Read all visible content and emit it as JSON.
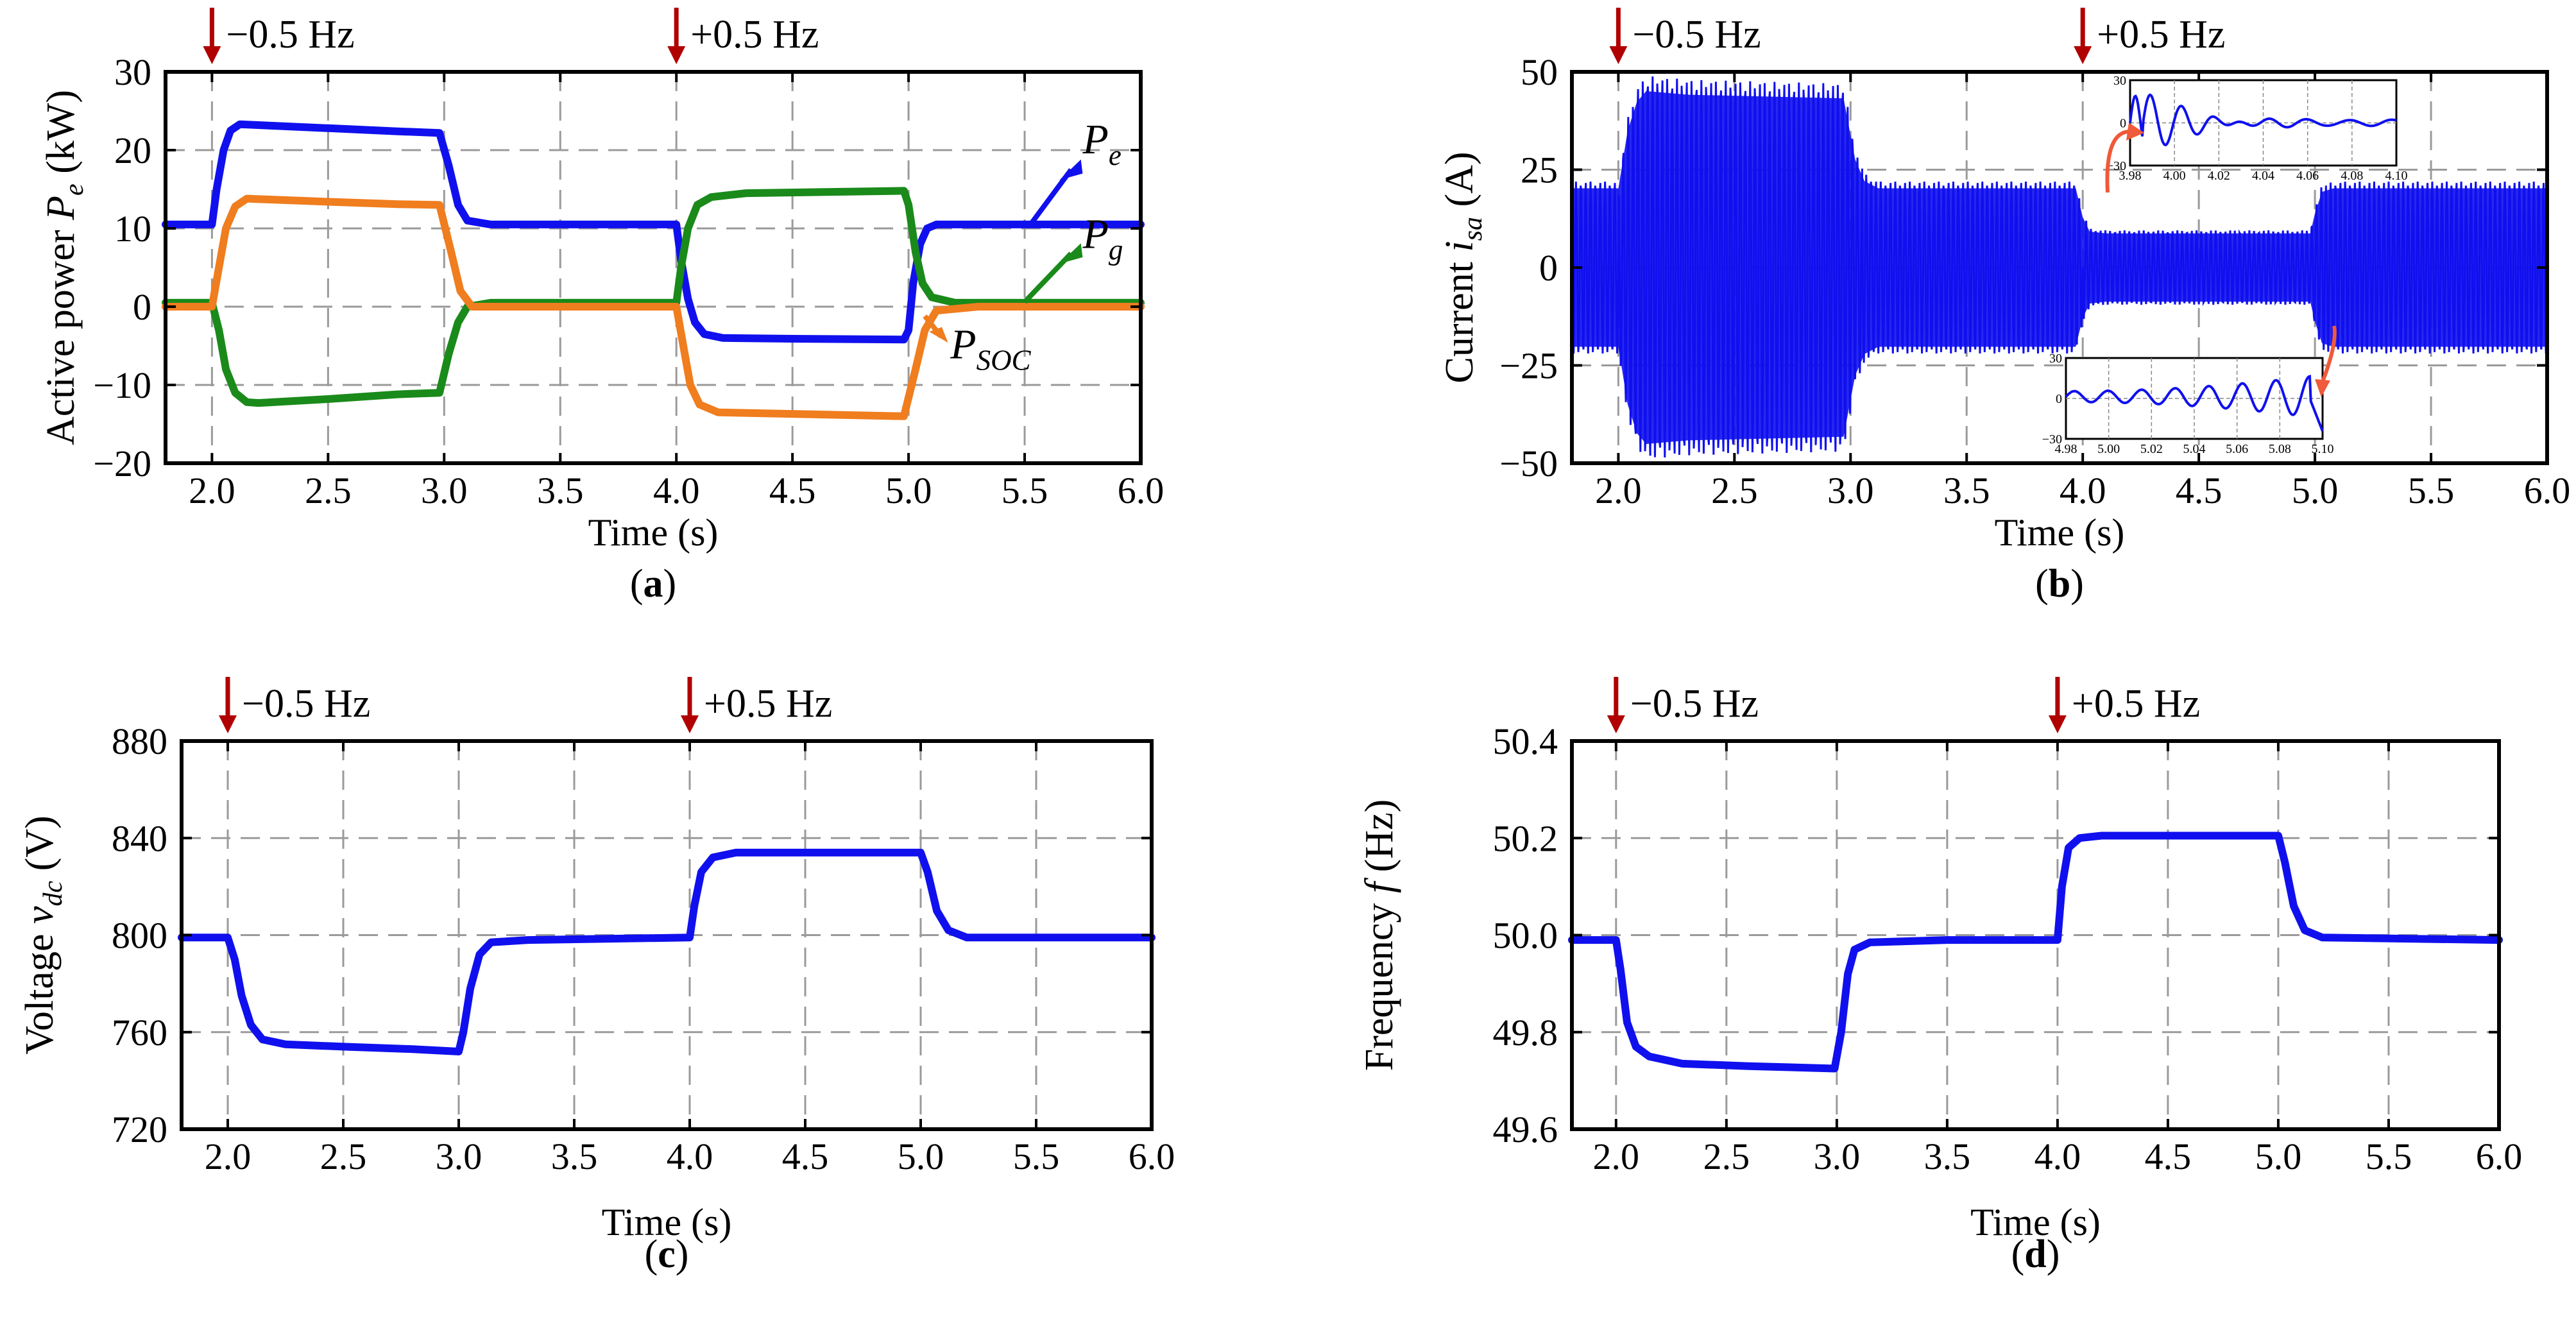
{
  "figure": {
    "colors": {
      "pe": "#1010ee",
      "pg": "#1a8a1a",
      "psoc": "#f07d1e",
      "current": "#1010ee",
      "trace": "#1010ee",
      "marker": "#b00000",
      "zoom_arrow": "#ef5a3a"
    }
  },
  "chart_data": [
    {
      "id": "a",
      "type": "line",
      "panel_label": "(a)",
      "xlabel": "Time (s)",
      "ylabel": "Active power P_e (kW)",
      "ylabel_prefix": "Active power ",
      "ylabel_sym": "P",
      "ylabel_sub": "e",
      "ylabel_suffix": " (kW)",
      "xlim": [
        1.8,
        6.0
      ],
      "ylim": [
        -20,
        30
      ],
      "xticks": [
        2.0,
        2.5,
        3.0,
        3.5,
        4.0,
        4.5,
        5.0,
        5.5,
        6.0
      ],
      "xtick_labels": [
        "2.0",
        "2.5",
        "3.0",
        "3.5",
        "4.0",
        "4.5",
        "5.0",
        "5.5",
        "6.0"
      ],
      "yticks": [
        -20,
        -10,
        0,
        10,
        20,
        30
      ],
      "ytick_labels": [
        "−20",
        "−10",
        "0",
        "10",
        "20",
        "30"
      ],
      "events": [
        {
          "x": 2.0,
          "label": "−0.5 Hz"
        },
        {
          "x": 4.0,
          "label": "+0.5 Hz"
        }
      ],
      "series": [
        {
          "name": "P_e",
          "sym": "P",
          "sub": "e",
          "color_key": "pe",
          "points": [
            [
              1.8,
              10.5
            ],
            [
              2.0,
              10.5
            ],
            [
              2.02,
              15
            ],
            [
              2.05,
              20
            ],
            [
              2.08,
              22.5
            ],
            [
              2.12,
              23.3
            ],
            [
              2.2,
              23.2
            ],
            [
              2.5,
              22.8
            ],
            [
              2.8,
              22.4
            ],
            [
              2.98,
              22.2
            ],
            [
              3.02,
              18
            ],
            [
              3.06,
              13
            ],
            [
              3.1,
              11
            ],
            [
              3.2,
              10.5
            ],
            [
              4.0,
              10.5
            ],
            [
              4.02,
              6
            ],
            [
              4.05,
              1
            ],
            [
              4.08,
              -2
            ],
            [
              4.12,
              -3.5
            ],
            [
              4.2,
              -4
            ],
            [
              4.5,
              -4.1
            ],
            [
              4.98,
              -4.2
            ],
            [
              5.0,
              -3
            ],
            [
              5.02,
              3
            ],
            [
              5.05,
              8
            ],
            [
              5.08,
              10
            ],
            [
              5.12,
              10.5
            ],
            [
              6.0,
              10.5
            ]
          ]
        },
        {
          "name": "P_g",
          "sym": "P",
          "sub": "g",
          "color_key": "pg",
          "points": [
            [
              1.8,
              0.5
            ],
            [
              2.0,
              0.5
            ],
            [
              2.03,
              -3
            ],
            [
              2.06,
              -8
            ],
            [
              2.1,
              -11
            ],
            [
              2.15,
              -12.2
            ],
            [
              2.2,
              -12.3
            ],
            [
              2.5,
              -11.8
            ],
            [
              2.8,
              -11.2
            ],
            [
              2.98,
              -11
            ],
            [
              3.02,
              -6
            ],
            [
              3.06,
              -2
            ],
            [
              3.1,
              0
            ],
            [
              3.2,
              0.5
            ],
            [
              4.0,
              0.5
            ],
            [
              4.02,
              5
            ],
            [
              4.05,
              10
            ],
            [
              4.09,
              13
            ],
            [
              4.15,
              14
            ],
            [
              4.3,
              14.5
            ],
            [
              4.98,
              14.8
            ],
            [
              5.0,
              13
            ],
            [
              5.03,
              7
            ],
            [
              5.06,
              3
            ],
            [
              5.1,
              1.2
            ],
            [
              5.2,
              0.5
            ],
            [
              6.0,
              0.5
            ]
          ]
        },
        {
          "name": "P_SOC",
          "sym": "P",
          "sub": "SOC",
          "color_key": "psoc",
          "points": [
            [
              1.8,
              0
            ],
            [
              2.0,
              0
            ],
            [
              2.03,
              5
            ],
            [
              2.06,
              10
            ],
            [
              2.1,
              12.8
            ],
            [
              2.15,
              13.8
            ],
            [
              2.5,
              13.4
            ],
            [
              2.8,
              13.1
            ],
            [
              2.98,
              13
            ],
            [
              3.03,
              7
            ],
            [
              3.07,
              2
            ],
            [
              3.12,
              0
            ],
            [
              4.0,
              0
            ],
            [
              4.03,
              -5
            ],
            [
              4.06,
              -10
            ],
            [
              4.1,
              -12.5
            ],
            [
              4.18,
              -13.5
            ],
            [
              4.98,
              -14
            ],
            [
              5.03,
              -8
            ],
            [
              5.07,
              -3
            ],
            [
              5.12,
              -0.5
            ],
            [
              5.3,
              0
            ],
            [
              6.0,
              0
            ]
          ]
        }
      ]
    },
    {
      "id": "b",
      "type": "line",
      "panel_label": "(b)",
      "xlabel": "Time (s)",
      "ylabel": "Current i_sa (A)",
      "ylabel_prefix": "Current ",
      "ylabel_sym": "i",
      "ylabel_sub": "sa",
      "ylabel_suffix": " (A)",
      "xlim": [
        1.8,
        6.0
      ],
      "ylim": [
        -50,
        50
      ],
      "xticks": [
        2.0,
        2.5,
        3.0,
        3.5,
        4.0,
        4.5,
        5.0,
        5.5,
        6.0
      ],
      "xtick_labels": [
        "2.0",
        "2.5",
        "3.0",
        "3.5",
        "4.0",
        "4.5",
        "5.0",
        "5.5",
        "6.0"
      ],
      "yticks": [
        -50,
        -25,
        0,
        25,
        50
      ],
      "ytick_labels": [
        "−50",
        "−25",
        "0",
        "25",
        "50"
      ],
      "events": [
        {
          "x": 2.0,
          "label": "−0.5 Hz"
        },
        {
          "x": 4.0,
          "label": "+0.5 Hz"
        }
      ],
      "envelope": [
        [
          1.8,
          22
        ],
        [
          2.0,
          22
        ],
        [
          2.04,
          38
        ],
        [
          2.08,
          46
        ],
        [
          2.12,
          49
        ],
        [
          2.3,
          48
        ],
        [
          2.97,
          47
        ],
        [
          3.02,
          30
        ],
        [
          3.06,
          24
        ],
        [
          3.12,
          22
        ],
        [
          3.97,
          22
        ],
        [
          4.0,
          14
        ],
        [
          4.03,
          10
        ],
        [
          4.1,
          9.5
        ],
        [
          4.98,
          9.5
        ],
        [
          5.0,
          15
        ],
        [
          5.03,
          21
        ],
        [
          5.08,
          22
        ],
        [
          6.0,
          22
        ]
      ],
      "insets": [
        {
          "xlim": [
            3.98,
            4.1
          ],
          "ylim": [
            -30,
            30
          ],
          "xticks": [
            "3.98",
            "4.00",
            "4.02",
            "4.04",
            "4.06",
            "4.08",
            "4.10"
          ],
          "yticks": [
            "30",
            "0",
            "−30"
          ]
        },
        {
          "xlim": [
            4.98,
            5.1
          ],
          "ylim": [
            -30,
            30
          ],
          "xticks": [
            "4.98",
            "5.00",
            "5.02",
            "5.04",
            "5.06",
            "5.08",
            "5.10"
          ],
          "yticks": [
            "30",
            "0",
            "−30"
          ]
        }
      ]
    },
    {
      "id": "c",
      "type": "line",
      "panel_label": "(c)",
      "xlabel": "Time (s)",
      "ylabel": "Voltage v_dc (V)",
      "ylabel_prefix": "Voltage ",
      "ylabel_sym": "v",
      "ylabel_sub": "dc",
      "ylabel_suffix": " (V)",
      "xlim": [
        1.8,
        6.0
      ],
      "ylim": [
        720,
        880
      ],
      "xticks": [
        2.0,
        2.5,
        3.0,
        3.5,
        4.0,
        4.5,
        5.0,
        5.5,
        6.0
      ],
      "xtick_labels": [
        "2.0",
        "2.5",
        "3.0",
        "3.5",
        "4.0",
        "4.5",
        "5.0",
        "5.5",
        "6.0"
      ],
      "yticks": [
        720,
        760,
        800,
        840,
        880
      ],
      "ytick_labels": [
        "720",
        "760",
        "800",
        "840",
        "880"
      ],
      "events": [
        {
          "x": 2.0,
          "label": "−0.5 Hz"
        },
        {
          "x": 4.0,
          "label": "+0.5 Hz"
        }
      ],
      "series": [
        {
          "name": "v_dc",
          "color_key": "trace",
          "points": [
            [
              1.8,
              799
            ],
            [
              2.0,
              799
            ],
            [
              2.03,
              790
            ],
            [
              2.06,
              775
            ],
            [
              2.1,
              763
            ],
            [
              2.15,
              757
            ],
            [
              2.25,
              755
            ],
            [
              2.5,
              754
            ],
            [
              2.8,
              753
            ],
            [
              3.0,
              752
            ],
            [
              3.02,
              760
            ],
            [
              3.05,
              778
            ],
            [
              3.09,
              792
            ],
            [
              3.14,
              797
            ],
            [
              3.3,
              798
            ],
            [
              4.0,
              799
            ],
            [
              4.02,
              812
            ],
            [
              4.05,
              826
            ],
            [
              4.1,
              832
            ],
            [
              4.2,
              834
            ],
            [
              5.0,
              834
            ],
            [
              5.03,
              826
            ],
            [
              5.07,
              810
            ],
            [
              5.12,
              802
            ],
            [
              5.2,
              799
            ],
            [
              6.0,
              799
            ]
          ]
        }
      ]
    },
    {
      "id": "d",
      "type": "line",
      "panel_label": "(d)",
      "xlabel": "Time (s)",
      "ylabel": "Frequency f (Hz)",
      "ylabel_prefix": "Frequency ",
      "ylabel_sym": "f",
      "ylabel_sub": "",
      "ylabel_suffix": " (Hz)",
      "xlim": [
        1.8,
        6.0
      ],
      "ylim": [
        49.6,
        50.4
      ],
      "xticks": [
        2.0,
        2.5,
        3.0,
        3.5,
        4.0,
        4.5,
        5.0,
        5.5,
        6.0
      ],
      "xtick_labels": [
        "2.0",
        "2.5",
        "3.0",
        "3.5",
        "4.0",
        "4.5",
        "5.0",
        "5.5",
        "6.0"
      ],
      "yticks": [
        49.6,
        49.8,
        50.0,
        50.2,
        50.4
      ],
      "ytick_labels": [
        "49.6",
        "49.8",
        "50.0",
        "50.2",
        "50.4"
      ],
      "events": [
        {
          "x": 2.0,
          "label": "−0.5 Hz"
        },
        {
          "x": 4.0,
          "label": "+0.5 Hz"
        }
      ],
      "series": [
        {
          "name": "f",
          "color_key": "trace",
          "points": [
            [
              1.8,
              49.99
            ],
            [
              2.0,
              49.99
            ],
            [
              2.02,
              49.93
            ],
            [
              2.05,
              49.82
            ],
            [
              2.09,
              49.77
            ],
            [
              2.15,
              49.75
            ],
            [
              2.3,
              49.735
            ],
            [
              2.6,
              49.73
            ],
            [
              2.99,
              49.725
            ],
            [
              3.02,
              49.8
            ],
            [
              3.05,
              49.92
            ],
            [
              3.08,
              49.97
            ],
            [
              3.15,
              49.985
            ],
            [
              3.5,
              49.99
            ],
            [
              4.0,
              49.99
            ],
            [
              4.02,
              50.1
            ],
            [
              4.05,
              50.18
            ],
            [
              4.1,
              50.2
            ],
            [
              4.2,
              50.205
            ],
            [
              5.0,
              50.205
            ],
            [
              5.03,
              50.15
            ],
            [
              5.07,
              50.06
            ],
            [
              5.12,
              50.01
            ],
            [
              5.2,
              49.995
            ],
            [
              6.0,
              49.99
            ]
          ]
        }
      ]
    }
  ]
}
